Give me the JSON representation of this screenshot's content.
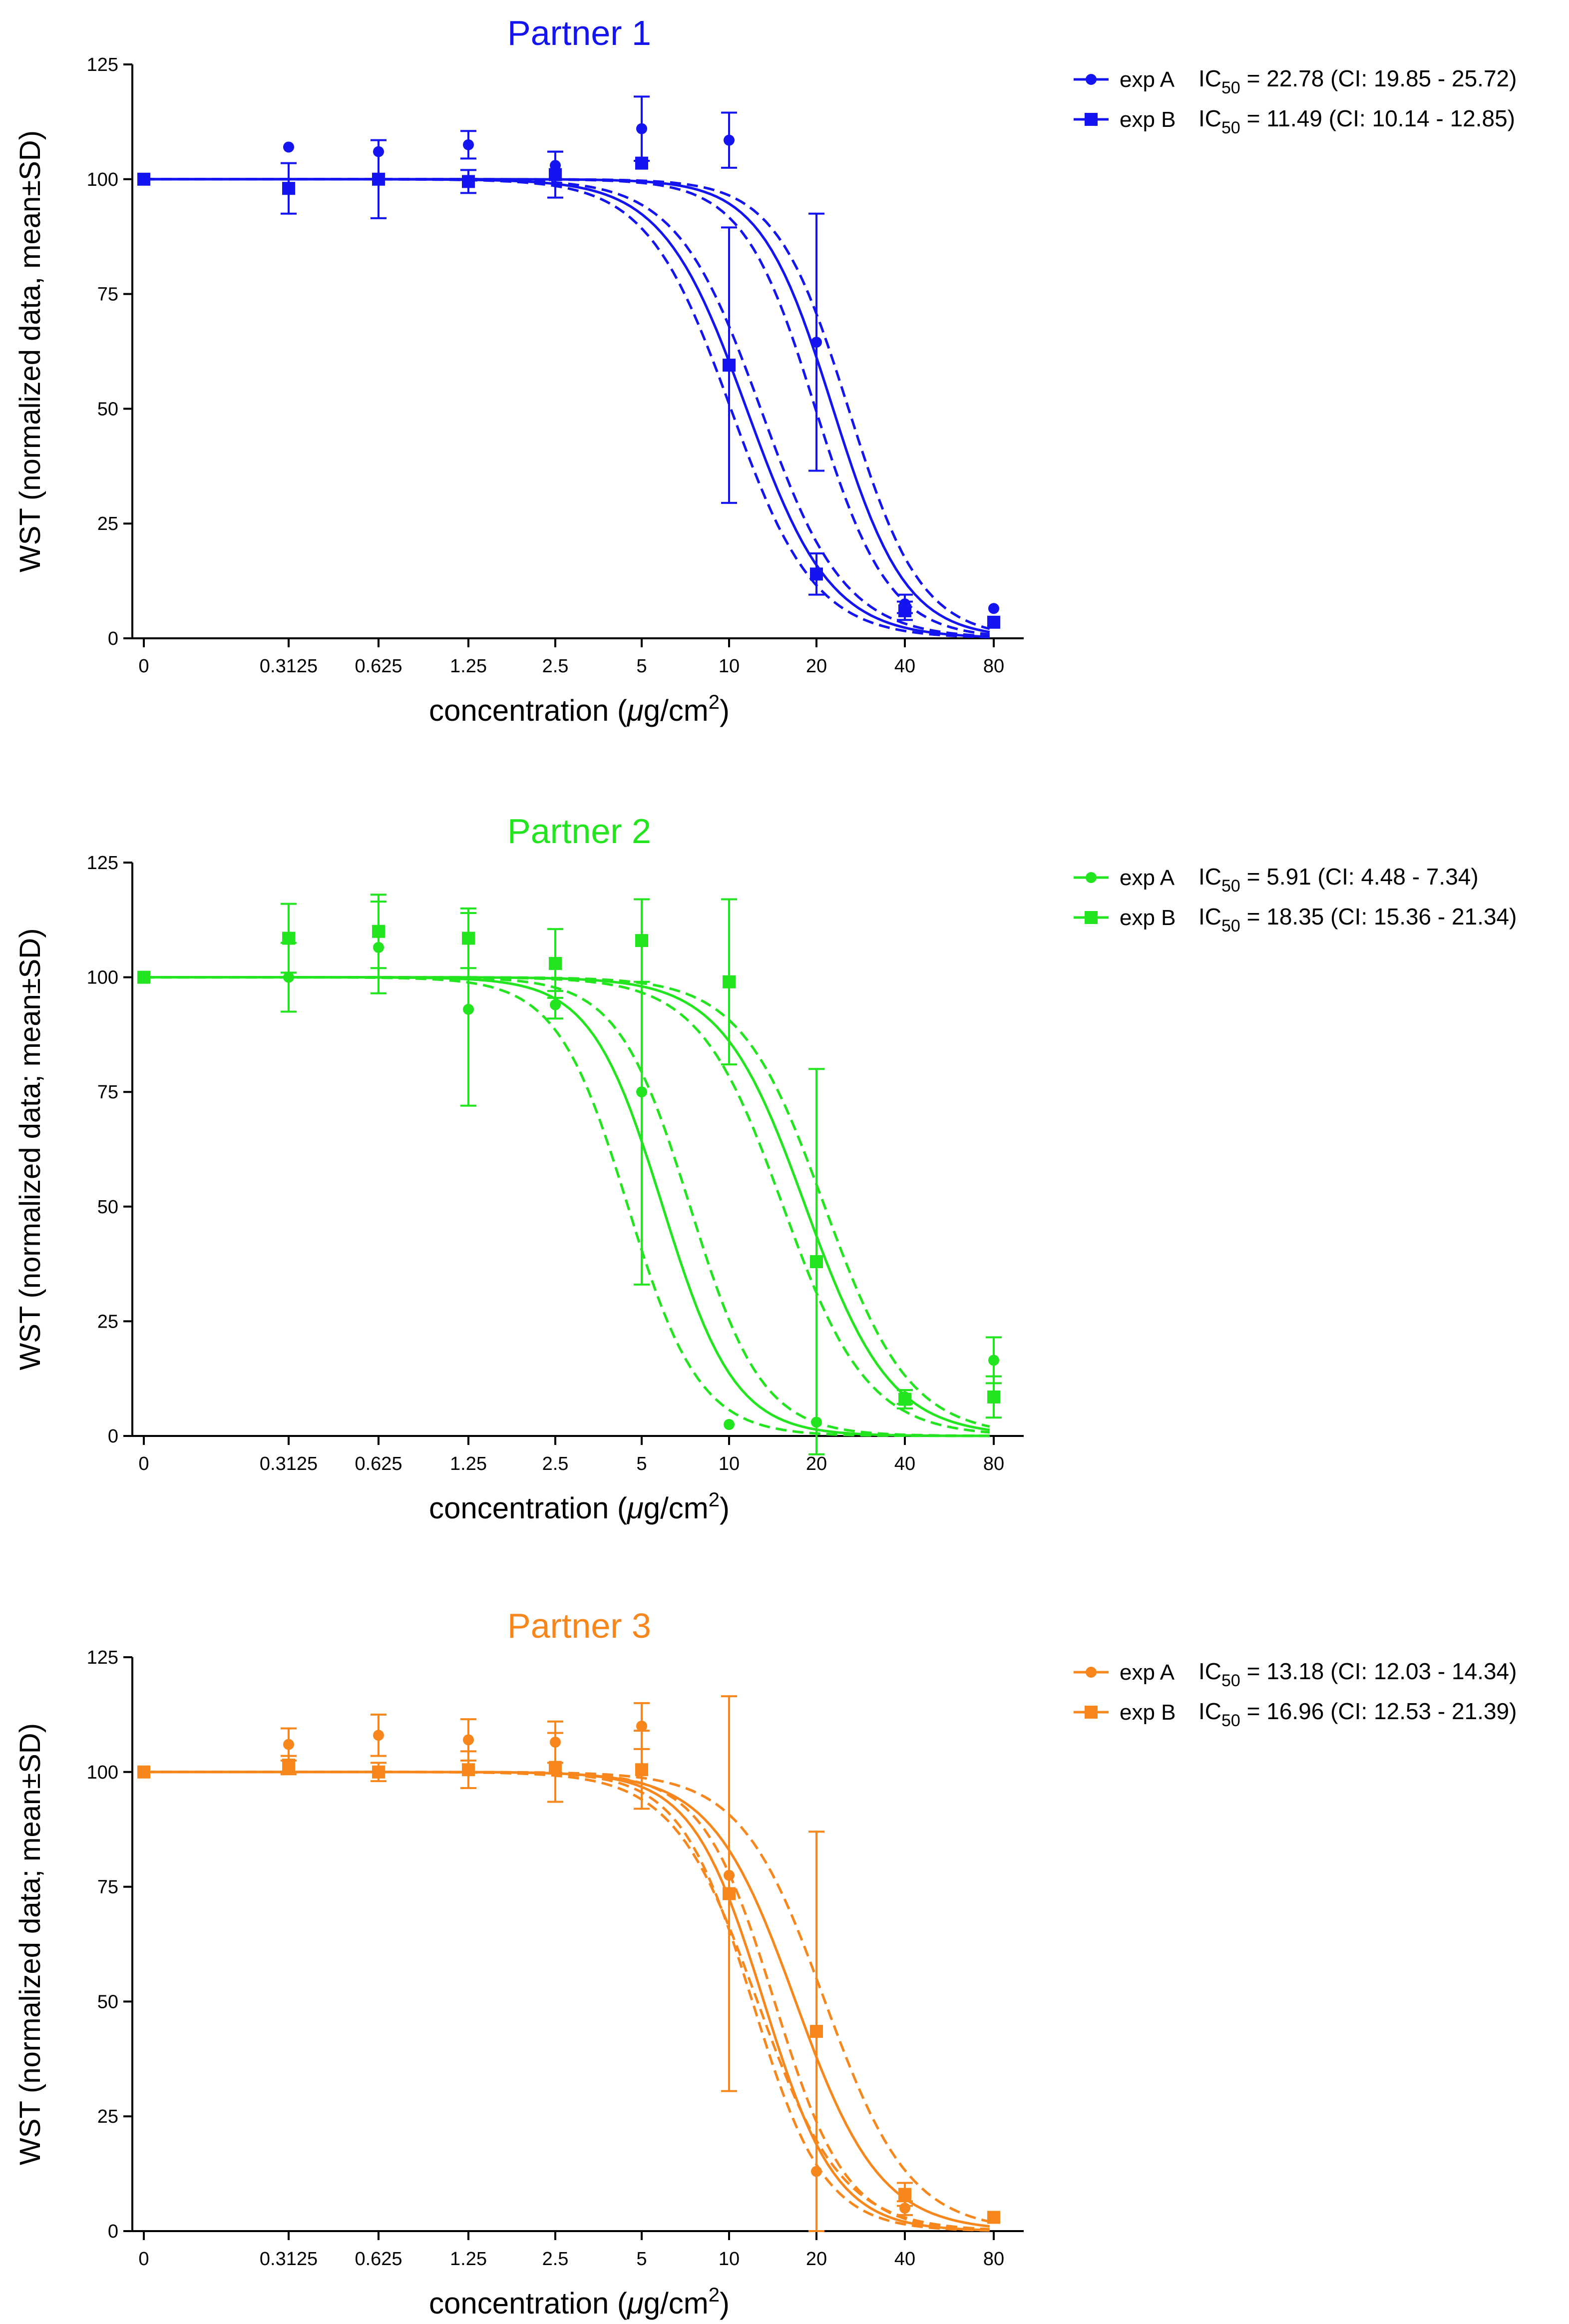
{
  "figure": {
    "type": "multi-panel dose-response (IC50) curves",
    "xlabel_prefix": "concentration ",
    "xlabel_unit_mu": "μ",
    "xlabel_unit_rest": "g/cm",
    "xlabel_sup": "2",
    "xlabel_suffix": ")",
    "ic_prefix": "IC",
    "ic_sub": "50"
  },
  "chart_data": [
    {
      "type": "scatter",
      "title": "Partner 1",
      "color": "#1414f0",
      "ylabel": "WST (normalized data, mean±SD)",
      "xlabel": "concentration (μg/cm2)",
      "x_scale": "log2 (0 plotted at first position)",
      "categories": [
        "0",
        "0.3125",
        "0.625",
        "1.25",
        "2.5",
        "5",
        "10",
        "20",
        "40",
        "80"
      ],
      "x_values": [
        0,
        0.3125,
        0.625,
        1.25,
        2.5,
        5,
        10,
        20,
        40,
        80
      ],
      "ylim": [
        0,
        125
      ],
      "yticks": [
        0,
        25,
        50,
        75,
        100,
        125
      ],
      "series": [
        {
          "name": "exp A",
          "marker": "circle",
          "ic50_label": " = 22.78 (CI: 19.85 - 25.72)",
          "ic50": 22.78,
          "ci": [
            19.85,
            25.72
          ],
          "values": [
            100,
            107,
            106,
            107.5,
            103,
            111,
            108.5,
            64.5,
            7.5,
            6.5
          ],
          "sd": [
            0,
            0,
            0,
            3,
            3,
            7,
            6,
            28,
            2,
            0
          ]
        },
        {
          "name": "exp B",
          "marker": "square",
          "ic50_label": " = 11.49 (CI: 10.14 - 12.85)",
          "ic50": 11.49,
          "ci": [
            10.14,
            12.85
          ],
          "values": [
            100,
            98,
            100,
            99.5,
            101,
            103.5,
            59.5,
            14,
            6,
            3.5
          ],
          "sd": [
            0,
            5.5,
            8.5,
            2.5,
            5,
            0,
            30,
            4.5,
            2,
            0
          ]
        }
      ]
    },
    {
      "type": "scatter",
      "title": "Partner 2",
      "color": "#22e41f",
      "ylabel": "WST (normalized data; mean±SD)",
      "xlabel": "concentration (μg/cm2)",
      "x_scale": "log2 (0 plotted at first position)",
      "categories": [
        "0",
        "0.3125",
        "0.625",
        "1.25",
        "2.5",
        "5",
        "10",
        "20",
        "40",
        "80"
      ],
      "x_values": [
        0,
        0.3125,
        0.625,
        1.25,
        2.5,
        5,
        10,
        20,
        40,
        80
      ],
      "ylim": [
        0,
        125
      ],
      "yticks": [
        0,
        25,
        50,
        75,
        100,
        125
      ],
      "series": [
        {
          "name": "exp A",
          "marker": "circle",
          "ic50_label": " = 5.91 (CI: 4.48 - 7.34)",
          "ic50": 5.91,
          "ci": [
            4.48,
            7.34
          ],
          "values": [
            100,
            100,
            106.5,
            93,
            94,
            75,
            2.5,
            3,
            8.5,
            16.5
          ],
          "sd": [
            0,
            7.5,
            10,
            21,
            3,
            42,
            0,
            0,
            1.5,
            5
          ]
        },
        {
          "name": "exp B",
          "marker": "square",
          "ic50_label": " = 18.35 (CI: 15.36 - 21.34)",
          "ic50": 18.35,
          "ci": [
            15.36,
            21.34
          ],
          "values": [
            100,
            108.5,
            110,
            108.5,
            103,
            108,
            99,
            38,
            8,
            8.5
          ],
          "sd": [
            0,
            7.5,
            8,
            6.5,
            7.5,
            9,
            18,
            42,
            2,
            4.5
          ]
        }
      ]
    },
    {
      "type": "scatter",
      "title": "Partner 3",
      "color": "#f7871c",
      "ylabel": "WST (normalized data; mean±SD)",
      "xlabel": "concentration (μg/cm2)",
      "x_scale": "log2 (0 plotted at first position)",
      "categories": [
        "0",
        "0.3125",
        "0.625",
        "1.25",
        "2.5",
        "5",
        "10",
        "20",
        "40",
        "80"
      ],
      "x_values": [
        0,
        0.3125,
        0.625,
        1.25,
        2.5,
        5,
        10,
        20,
        40,
        80
      ],
      "ylim": [
        0,
        125
      ],
      "yticks": [
        0,
        25,
        50,
        75,
        100,
        125
      ],
      "series": [
        {
          "name": "exp A",
          "marker": "circle",
          "ic50_label": " = 13.18 (CI: 12.03 - 14.34)",
          "ic50": 13.18,
          "ci": [
            12.03,
            14.34
          ],
          "values": [
            100,
            106,
            108,
            107,
            106.5,
            110,
            77.5,
            13,
            5,
            3
          ],
          "sd": [
            0,
            3.5,
            4.5,
            4.5,
            4.5,
            5,
            0,
            0,
            1.5,
            0
          ]
        },
        {
          "name": "exp B",
          "marker": "square",
          "ic50_label": " = 16.96 (CI: 12.53 - 21.39)",
          "ic50": 16.96,
          "ci": [
            12.53,
            21.39
          ],
          "values": [
            100,
            101.5,
            100,
            100.5,
            101,
            100.5,
            73.5,
            43.5,
            8,
            3
          ],
          "sd": [
            0,
            2,
            2,
            4,
            7.5,
            8.5,
            43,
            43.5,
            2.5,
            0
          ]
        }
      ]
    }
  ]
}
